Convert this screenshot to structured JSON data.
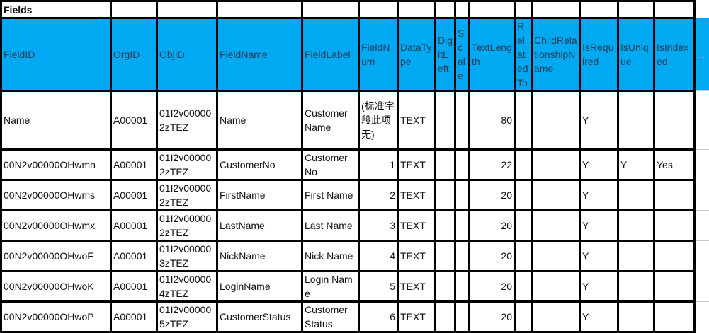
{
  "title": "Fields",
  "colors": {
    "header_bg": "#00a9f1",
    "header_text": "#25405e"
  },
  "columns": [
    "FieldID",
    "OrgID",
    "ObjID",
    "FieldName",
    "FieldLabel",
    "FieldNum",
    "DataType",
    "DigitLeft",
    "Scale",
    "TextLength",
    "RelatedTo",
    "ChildRelationshipName",
    "IsRequired",
    "IsUnique",
    "IsIndexed",
    "..."
  ],
  "rows": [
    [
      "Name",
      "A00001",
      "01I2v000002zTEZ",
      "Name",
      "Customer Name",
      "(标准字段此项无)",
      "TEXT",
      "",
      "",
      "80",
      "",
      "",
      "Y",
      "",
      "",
      ""
    ],
    [
      "00N2v00000OHwmn",
      "A00001",
      "01I2v000002zTEZ",
      "CustomerNo",
      "Customer No",
      "1",
      "TEXT",
      "",
      "",
      "22",
      "",
      "",
      "Y",
      "Y",
      "Yes",
      ""
    ],
    [
      "00N2v00000OHwms",
      "A00001",
      "01I2v000002zTEZ",
      "FirstName",
      "First Name",
      "2",
      "TEXT",
      "",
      "",
      "20",
      "",
      "",
      "Y",
      "",
      "",
      ""
    ],
    [
      "00N2v00000OHwmx",
      "A00001",
      "01I2v000002zTEZ",
      "LastName",
      "Last Name",
      "3",
      "TEXT",
      "",
      "",
      "20",
      "",
      "",
      "Y",
      "",
      "",
      ""
    ],
    [
      "00N2v00000OHwoF",
      "A00001",
      "01I2v000003zTEZ",
      "NickName",
      "Nick Name",
      "4",
      "TEXT",
      "",
      "",
      "20",
      "",
      "",
      "Y",
      "",
      "",
      ""
    ],
    [
      "00N2v00000OHwoK",
      "A00001",
      "01I2v000004zTEZ",
      "LoginName",
      "Login Name",
      "5",
      "TEXT",
      "",
      "",
      "20",
      "",
      "",
      "Y",
      "",
      "",
      ""
    ],
    [
      "00N2v00000OHwoP",
      "A00001",
      "01I2v000005zTEZ",
      "CustomerStatus",
      "Customer Status",
      "6",
      "TEXT",
      "",
      "",
      "20",
      "",
      "",
      "Y",
      "",
      "",
      ""
    ]
  ]
}
